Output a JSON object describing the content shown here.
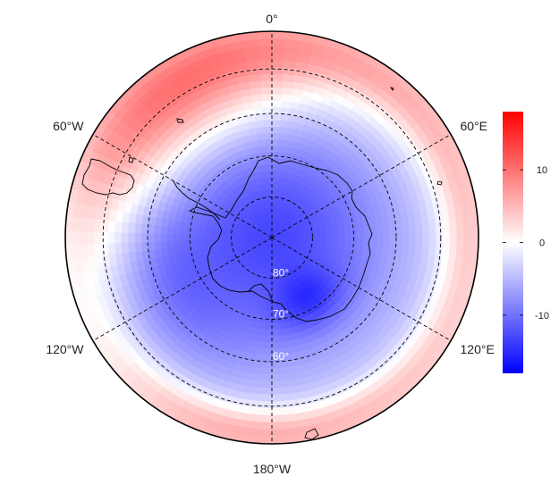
{
  "map": {
    "projection": "south-polar-stereographic",
    "field": "diverging anomaly, negative (blue) over Antarctica, positive (red) toward Atlantic/Pacific margins",
    "longitude_labels": [
      "0°",
      "60°E",
      "120°E",
      "180°W",
      "120°W",
      "60°W"
    ],
    "latitude_labels": [
      "80°",
      "70°",
      "60°"
    ],
    "latitude_circles": [
      80,
      70,
      60,
      50
    ],
    "graticule_style": "dashed"
  },
  "colorbar": {
    "min": -18,
    "max": 18,
    "tick_labels": [
      "10",
      "0",
      "-10"
    ],
    "tick_values": [
      10,
      0,
      -10
    ],
    "color_low": "#0000ff",
    "color_mid": "#ffffff",
    "color_high": "#ff0000"
  },
  "colors": {
    "coastline": "#000000",
    "graticule": "#000000",
    "border": "#000000"
  }
}
